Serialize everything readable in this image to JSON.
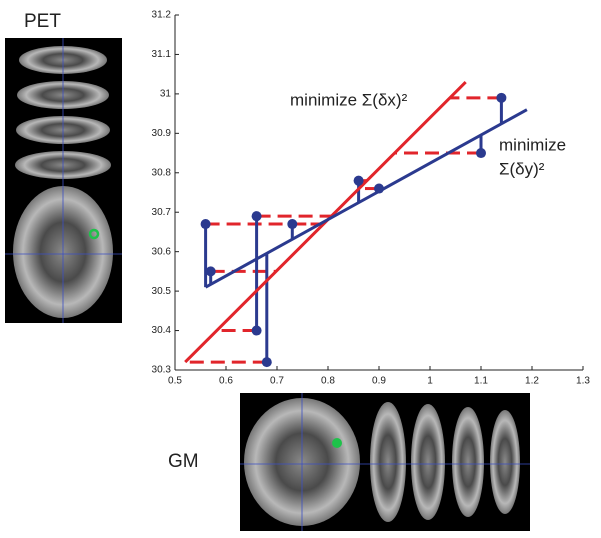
{
  "chart_data": {
    "type": "scatter",
    "x": [
      0.56,
      0.57,
      0.66,
      0.66,
      0.68,
      0.73,
      0.86,
      0.9,
      1.1,
      1.14
    ],
    "y": [
      30.67,
      30.55,
      30.69,
      30.4,
      30.32,
      30.67,
      30.78,
      30.76,
      30.85,
      30.99
    ],
    "color": "#2b3a8f",
    "lines": [
      {
        "color": "#e1252b",
        "residual": "horizontal",
        "x": [
          0.52,
          1.07
        ],
        "y": [
          30.32,
          31.03
        ]
      },
      {
        "color": "#2b3a8f",
        "residual": "vertical",
        "x": [
          0.56,
          1.19
        ],
        "y": [
          30.51,
          30.96
        ]
      }
    ],
    "xlim": [
      0.5,
      1.3
    ],
    "xticks": [
      0.5,
      0.6,
      0.7,
      0.8,
      0.9,
      1,
      1.1,
      1.2,
      1.3
    ],
    "ylim": [
      30.3,
      31.2
    ],
    "yticks": [
      30.3,
      30.4,
      30.5,
      30.6,
      30.7,
      30.8,
      30.9,
      31,
      31.1,
      31.2
    ],
    "annotations": [
      "minimize Σ(δx)²",
      "minimize",
      "Σ(δy)²"
    ]
  },
  "images": {
    "pet_label": "PET",
    "gm_label": "GM"
  }
}
